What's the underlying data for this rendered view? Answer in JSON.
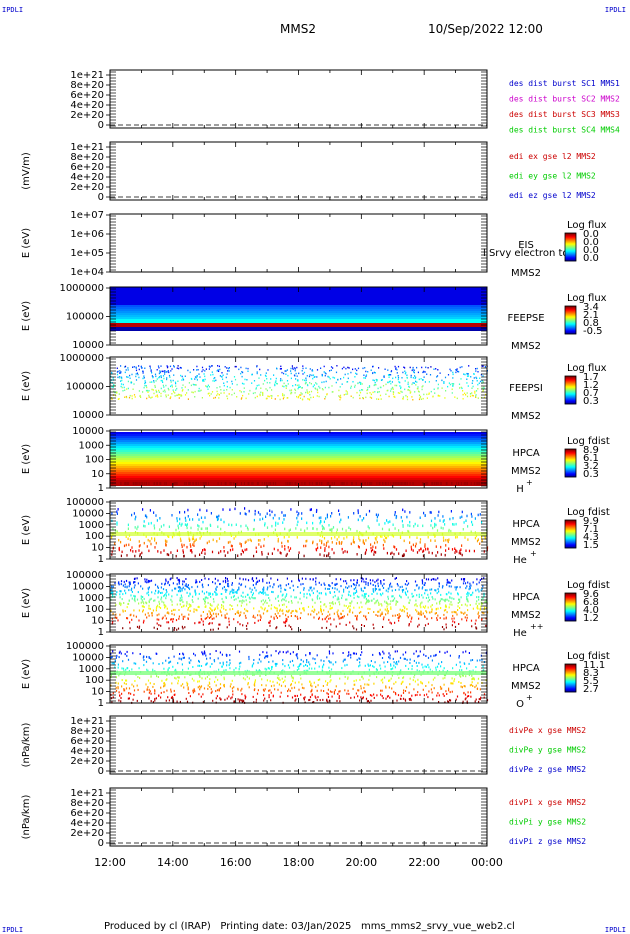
{
  "corners": {
    "tl": "IPDLI",
    "tr": "IPDLI",
    "bl": "IPDLI",
    "br": "IPDLI"
  },
  "header": {
    "spacecraft": "MMS2",
    "datetime": "10/Sep/2022 12:00"
  },
  "footer": {
    "produced": "Produced by cl (IRAP)",
    "printing": "Printing date: 03/Jan/2025",
    "file": "mms_mms2_srvy_vue_web2.cl"
  },
  "colors": {
    "black": "#000000",
    "blue": "#0000cc",
    "magenta": "#cc00cc",
    "red": "#cc0000",
    "green": "#00cc00"
  },
  "chart_data": [
    {
      "id": "p1",
      "type": "line",
      "xlabel": "",
      "ylabel": "",
      "yticks": [
        "1e+21",
        "8e+20",
        "6e+20",
        "4e+20",
        "2e+20",
        "0"
      ],
      "legend": [
        {
          "text": "des dist burst SC1 MMS1",
          "color": "#0000cc"
        },
        {
          "text": "des dist burst SC2 MMS2",
          "color": "#cc00cc"
        },
        {
          "text": "des dist burst SC3 MMS3",
          "color": "#cc0000"
        },
        {
          "text": "des dist burst SC4 MMS4",
          "color": "#00cc00"
        }
      ]
    },
    {
      "id": "p2",
      "type": "line",
      "ylabel": "(mV/m)",
      "yticks": [
        "1e+21",
        "8e+20",
        "6e+20",
        "4e+20",
        "2e+20",
        "0"
      ],
      "legend": [
        {
          "text": "edi ex gse l2 MMS2",
          "color": "#cc0000"
        },
        {
          "text": "edi ey gse l2 MMS2",
          "color": "#00cc00"
        },
        {
          "text": "edi ez gse l2 MMS2",
          "color": "#0000cc"
        }
      ]
    },
    {
      "id": "p3",
      "type": "heatmap",
      "ylabel": "E (eV)",
      "yticks": [
        "1e+07",
        "1e+06",
        "1e+05",
        "1e+04"
      ],
      "labels": [
        "EIS",
        "MMS2"
      ],
      "overlay": "l Srvy electron to",
      "cbar_title": "Log flux",
      "cbar_ticks": [
        "0.0",
        "0.0",
        "0.0",
        "0.0"
      ]
    },
    {
      "id": "p4",
      "type": "heatmap",
      "ylabel": "E (eV)",
      "yticks": [
        "1000000",
        "100000",
        "10000"
      ],
      "labels": [
        "FEEPSE",
        "MMS2"
      ],
      "cbar_title": "Log flux",
      "cbar_ticks": [
        "3.4",
        "2.1",
        "0.8",
        "-0.5"
      ]
    },
    {
      "id": "p5",
      "type": "heatmap",
      "ylabel": "E (eV)",
      "yticks": [
        "1000000",
        "100000",
        "10000"
      ],
      "labels": [
        "FEEPSI",
        "MMS2"
      ],
      "cbar_title": "Log flux",
      "cbar_ticks": [
        "1.7",
        "1.2",
        "0.7",
        "0.3"
      ]
    },
    {
      "id": "p6",
      "type": "heatmap",
      "ylabel": "E (eV)",
      "yticks": [
        "10000",
        "1000",
        "100",
        "10",
        "1"
      ],
      "labels": [
        "HPCA",
        "MMS2"
      ],
      "species": "H",
      "charge": "+",
      "cbar_title": "Log fdist",
      "cbar_ticks": [
        "8.9",
        "6.1",
        "3.2",
        "0.3"
      ]
    },
    {
      "id": "p7",
      "type": "heatmap",
      "ylabel": "E (eV)",
      "yticks": [
        "100000",
        "10000",
        "1000",
        "100",
        "10",
        "1"
      ],
      "labels": [
        "HPCA",
        "MMS2"
      ],
      "species": "He",
      "charge": "+",
      "cbar_title": "Log fdist",
      "cbar_ticks": [
        "9.9",
        "7.1",
        "4.3",
        "1.5"
      ]
    },
    {
      "id": "p8",
      "type": "heatmap",
      "ylabel": "E (eV)",
      "yticks": [
        "100000",
        "10000",
        "1000",
        "100",
        "10",
        "1"
      ],
      "labels": [
        "HPCA",
        "MMS2"
      ],
      "species": "He",
      "charge": "++",
      "cbar_title": "Log fdist",
      "cbar_ticks": [
        "9.6",
        "6.8",
        "4.0",
        "1.2"
      ]
    },
    {
      "id": "p9",
      "type": "heatmap",
      "ylabel": "E (eV)",
      "yticks": [
        "100000",
        "10000",
        "1000",
        "100",
        "10",
        "1"
      ],
      "labels": [
        "HPCA",
        "MMS2"
      ],
      "species": "O",
      "charge": "+",
      "cbar_title": "Log fdist",
      "cbar_ticks": [
        "11.1",
        "8.3",
        "5.5",
        "2.7"
      ]
    },
    {
      "id": "p10",
      "type": "line",
      "ylabel": "(nPa/km)",
      "yticks": [
        "1e+21",
        "8e+20",
        "6e+20",
        "4e+20",
        "2e+20",
        "0"
      ],
      "legend": [
        {
          "text": "divPe x gse MMS2",
          "color": "#cc0000"
        },
        {
          "text": "divPe y gse MMS2",
          "color": "#00cc00"
        },
        {
          "text": "divPe z gse MMS2",
          "color": "#0000cc"
        }
      ]
    },
    {
      "id": "p11",
      "type": "line",
      "ylabel": "(nPa/km)",
      "yticks": [
        "1e+21",
        "8e+20",
        "6e+20",
        "4e+20",
        "2e+20",
        "0"
      ],
      "legend": [
        {
          "text": "divPi x gse MMS2",
          "color": "#cc0000"
        },
        {
          "text": "divPi y gse MMS2",
          "color": "#00cc00"
        },
        {
          "text": "divPi z gse MMS2",
          "color": "#0000cc"
        }
      ]
    }
  ],
  "time_axis": [
    "12:00",
    "14:00",
    "16:00",
    "18:00",
    "20:00",
    "22:00",
    "00:00"
  ]
}
